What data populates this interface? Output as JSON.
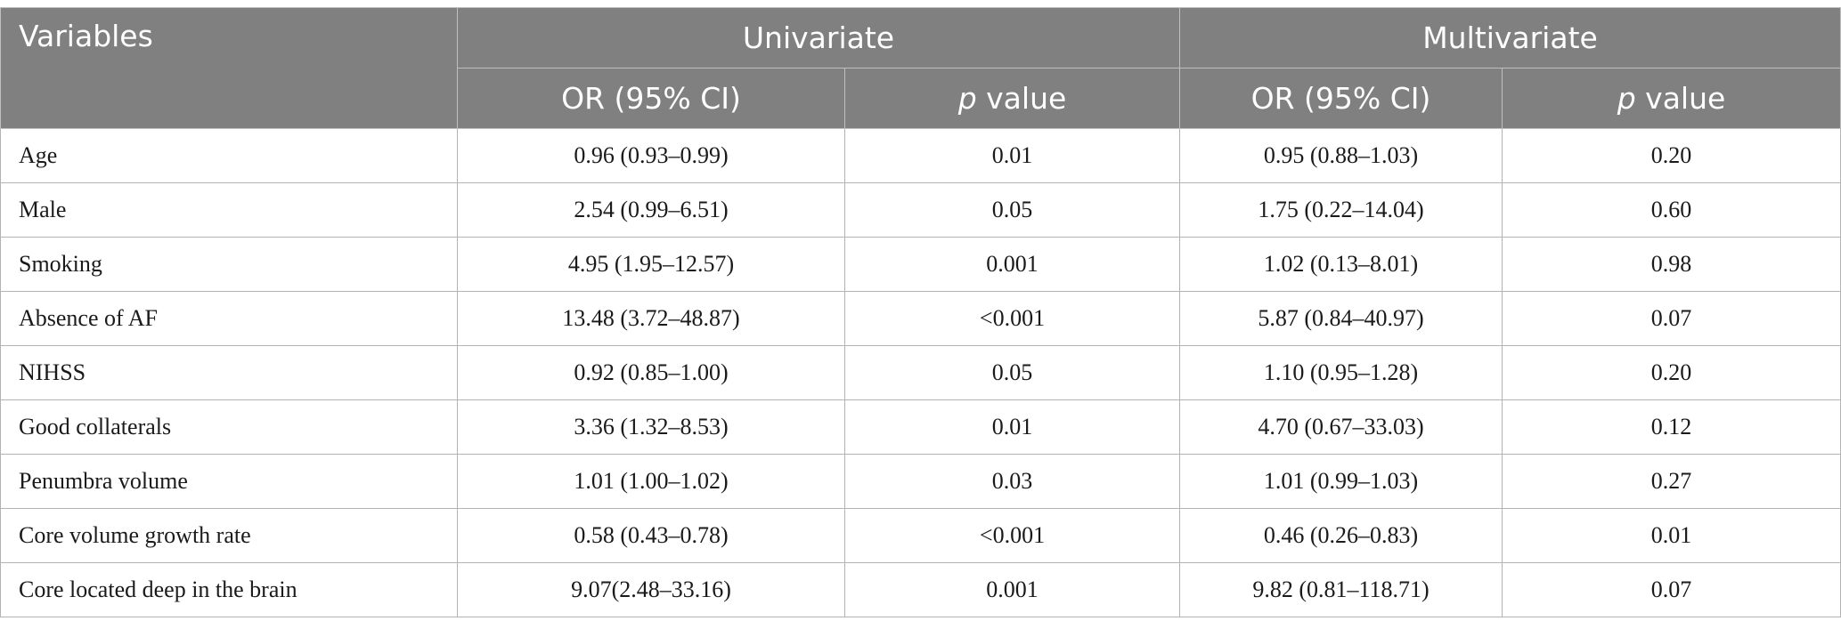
{
  "table": {
    "header": {
      "variables": "Variables",
      "univariate": "Univariate",
      "multivariate": "Multivariate",
      "or_ci": "OR (95% CI)",
      "p_letter": "p",
      "p_rest": " value"
    },
    "rows": [
      {
        "variable": "Age",
        "uni_or": "0.96 (0.93–0.99)",
        "uni_p": "0.01",
        "multi_or": "0.95 (0.88–1.03)",
        "multi_p": "0.20"
      },
      {
        "variable": "Male",
        "uni_or": "2.54 (0.99–6.51)",
        "uni_p": "0.05",
        "multi_or": "1.75 (0.22–14.04)",
        "multi_p": "0.60"
      },
      {
        "variable": "Smoking",
        "uni_or": "4.95 (1.95–12.57)",
        "uni_p": "0.001",
        "multi_or": "1.02 (0.13–8.01)",
        "multi_p": "0.98"
      },
      {
        "variable": "Absence of AF",
        "uni_or": "13.48 (3.72–48.87)",
        "uni_p": "<0.001",
        "multi_or": "5.87 (0.84–40.97)",
        "multi_p": "0.07"
      },
      {
        "variable": "NIHSS",
        "uni_or": "0.92 (0.85–1.00)",
        "uni_p": "0.05",
        "multi_or": "1.10 (0.95–1.28)",
        "multi_p": "0.20"
      },
      {
        "variable": "Good collaterals",
        "uni_or": "3.36 (1.32–8.53)",
        "uni_p": "0.01",
        "multi_or": "4.70 (0.67–33.03)",
        "multi_p": "0.12"
      },
      {
        "variable": "Penumbra volume",
        "uni_or": "1.01 (1.00–1.02)",
        "uni_p": "0.03",
        "multi_or": "1.01 (0.99–1.03)",
        "multi_p": "0.27"
      },
      {
        "variable": "Core volume growth rate",
        "uni_or": "0.58 (0.43–0.78)",
        "uni_p": "<0.001",
        "multi_or": "0.46 (0.26–0.83)",
        "multi_p": "0.01"
      },
      {
        "variable": "Core located deep in the brain",
        "uni_or": "9.07(2.48–33.16)",
        "uni_p": "0.001",
        "multi_or": "9.82 (0.81–118.71)",
        "multi_p": "0.07"
      }
    ]
  }
}
